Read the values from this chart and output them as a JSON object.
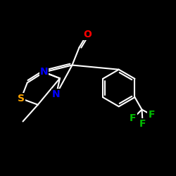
{
  "background_color": "#000000",
  "atom_colors": {
    "O": "#ff0000",
    "N": "#0000ff",
    "S": "#ffa500",
    "F": "#00bb00",
    "C": "#ffffff"
  },
  "bond_color": "#ffffff",
  "bond_width": 1.5,
  "font_size_atoms": 10,
  "fig_width": 2.5,
  "fig_height": 2.5,
  "dpi": 100,
  "xlim": [
    0,
    10
  ],
  "ylim": [
    0,
    10
  ]
}
